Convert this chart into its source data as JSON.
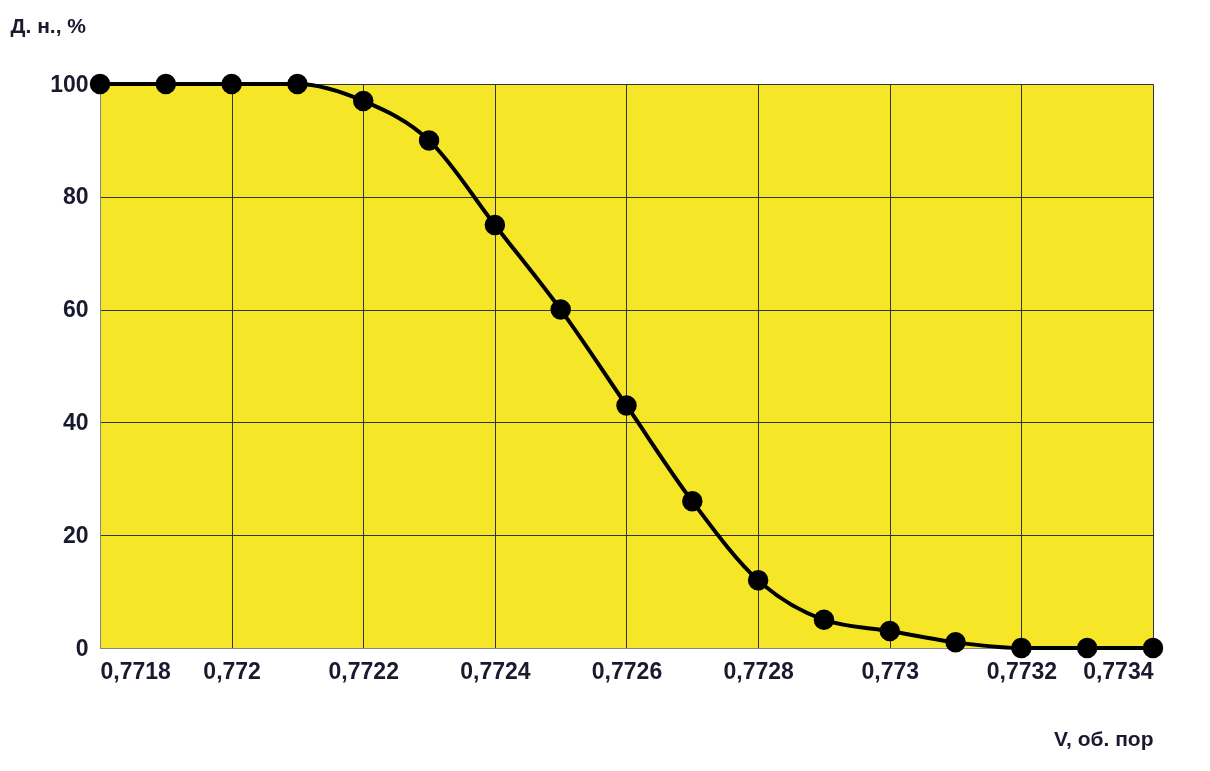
{
  "chart_data": {
    "type": "line",
    "xlabel": "V, об. пор",
    "ylabel": "Д. н., %",
    "x": [
      0.7718,
      0.7719,
      0.772,
      0.7721,
      0.7722,
      0.7723,
      0.7724,
      0.7725,
      0.7726,
      0.7727,
      0.7728,
      0.7729,
      0.773,
      0.7731,
      0.7732,
      0.7733,
      0.7734
    ],
    "series": [
      {
        "color": "#000000",
        "values": [
          100,
          100,
          100,
          100,
          97,
          90,
          75,
          60,
          43,
          26,
          12,
          5,
          3,
          1,
          0,
          0,
          0
        ]
      }
    ],
    "xlim": [
      0.7718,
      0.7734
    ],
    "xticks": [
      {
        "value": 0.7718,
        "label": "0,7718"
      },
      {
        "value": 0.772,
        "label": "0,772"
      },
      {
        "value": 0.7722,
        "label": "0,7722"
      },
      {
        "value": 0.7724,
        "label": "0,7724"
      },
      {
        "value": 0.7726,
        "label": "0,7726"
      },
      {
        "value": 0.7728,
        "label": "0,7728"
      },
      {
        "value": 0.773,
        "label": "0,773"
      },
      {
        "value": 0.7732,
        "label": "0,7732"
      },
      {
        "value": 0.7734,
        "label": "0,7734"
      }
    ],
    "ylim": [
      0,
      100
    ],
    "yticks": [
      0,
      20,
      40,
      60,
      80,
      100
    ],
    "grid": true,
    "marker": "circle",
    "line_style": "solid",
    "legend": false
  }
}
